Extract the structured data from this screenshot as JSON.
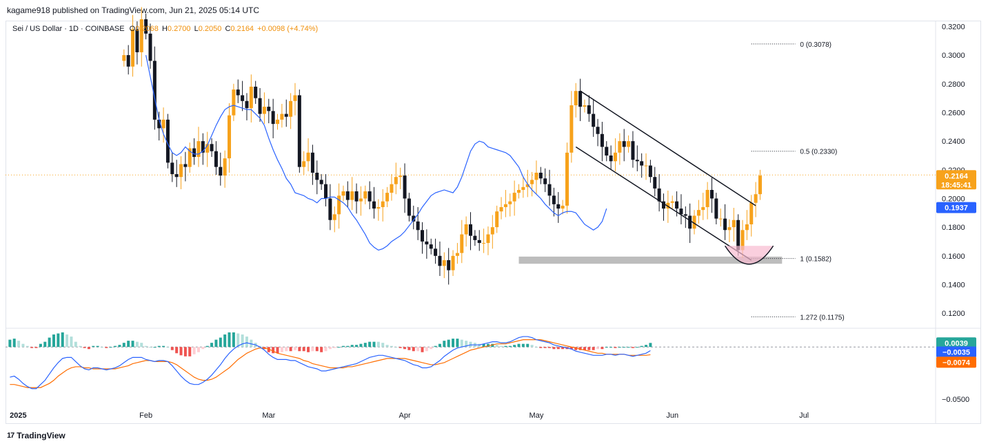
{
  "header": {
    "published": "kagame918 published on TradingView.com, Jun 21, 2025 05:14 UTC"
  },
  "legend": {
    "symbol": "Sei / US Dollar · 1D · COINBASE",
    "o_label": "O",
    "o_value": "0.2068",
    "h_label": "H",
    "h_value": "0.2700",
    "l_label": "L",
    "l_value": "0.2050",
    "c_label": "C",
    "c_value": "0.2164",
    "change": "+0.0098 (+4.74%)"
  },
  "badges": {
    "price": "0.2164",
    "countdown": "18:45:41",
    "ma": "0.1937",
    "macd_hist": "0.0039",
    "macd": "−0.0035",
    "signal": "−0.0074"
  },
  "fib": [
    {
      "label": "0 (0.3078)",
      "value": 0.3078
    },
    {
      "label": "0.5 (0.2330)",
      "value": 0.233
    },
    {
      "label": "1 (0.1582)",
      "value": 0.1582
    },
    {
      "label": "1.272 (0.1175)",
      "value": 0.1175
    }
  ],
  "brand": {
    "name": "TradingView"
  },
  "colors": {
    "up": "#f7a21b",
    "down": "#131722",
    "ma": "#2962ff",
    "macd": "#2962ff",
    "signal": "#ff6d00",
    "hist_up_strong": "#26a69a",
    "hist_up_weak": "#b2dfdb",
    "hist_down_strong": "#ef5350",
    "hist_down_weak": "#ffcdd2",
    "price_badge": "#f7a21b",
    "ma_badge": "#2962ff",
    "channel": "#131722",
    "support_zone": "#bdbdbd",
    "cup": "#f8bbd0"
  },
  "chart_data": [
    {
      "type": "candlestick",
      "ylim": [
        0.11,
        0.325
      ],
      "yticks": [
        "0.3200",
        "0.3000",
        "0.2800",
        "0.2600",
        "0.2400",
        "0.2200",
        "0.2000",
        "0.1800",
        "0.1600",
        "0.1400",
        "0.1200"
      ],
      "xticks": [
        {
          "label": "2025",
          "date": "2025-01-01"
        },
        {
          "label": "Feb",
          "date": "2025-02-01"
        },
        {
          "label": "Mar",
          "date": "2025-03-01"
        },
        {
          "label": "Apr",
          "date": "2025-04-01"
        },
        {
          "label": "May",
          "date": "2025-05-01"
        },
        {
          "label": "Jun",
          "date": "2025-06-01"
        },
        {
          "label": "Jul",
          "date": "2025-07-01"
        }
      ],
      "x_start": "2024-12-31",
      "x_end": "2025-07-31",
      "series": [
        {
          "name": "Sei / US Dollar",
          "kind": "ohlc",
          "start_date": "2025-01-27",
          "close": [
            0.3,
            0.292,
            0.318,
            0.302,
            0.325,
            0.315,
            0.296,
            0.255,
            0.249,
            0.255,
            0.225,
            0.217,
            0.215,
            0.224,
            0.222,
            0.235,
            0.229,
            0.24,
            0.232,
            0.238,
            0.233,
            0.222,
            0.216,
            0.228,
            0.258,
            0.276,
            0.272,
            0.268,
            0.263,
            0.278,
            0.27,
            0.259,
            0.264,
            0.261,
            0.252,
            0.255,
            0.259,
            0.257,
            0.268,
            0.272,
            0.222,
            0.226,
            0.232,
            0.218,
            0.213,
            0.21,
            0.2,
            0.185,
            0.189,
            0.202,
            0.205,
            0.199,
            0.205,
            0.198,
            0.2,
            0.205,
            0.198,
            0.193,
            0.194,
            0.198,
            0.204,
            0.21,
            0.215,
            0.216,
            0.2,
            0.188,
            0.184,
            0.178,
            0.17,
            0.168,
            0.165,
            0.16,
            0.153,
            0.157,
            0.15,
            0.16,
            0.162,
            0.175,
            0.182,
            0.174,
            0.171,
            0.169,
            0.169,
            0.175,
            0.18,
            0.191,
            0.194,
            0.196,
            0.198,
            0.204,
            0.206,
            0.208,
            0.21,
            0.213,
            0.218,
            0.214,
            0.21,
            0.202,
            0.196,
            0.193,
            0.195,
            0.232,
            0.265,
            0.275,
            0.264,
            0.265,
            0.259,
            0.25,
            0.245,
            0.236,
            0.23,
            0.226,
            0.232,
            0.24,
            0.236,
            0.24,
            0.227,
            0.226,
            0.223,
            0.223,
            0.215,
            0.207,
            0.198,
            0.193,
            0.197,
            0.198,
            0.193,
            0.189,
            0.188,
            0.179,
            0.188,
            0.192,
            0.194,
            0.206,
            0.2,
            0.186,
            0.186,
            0.178,
            0.18,
            0.185,
            0.164,
            0.178,
            0.182,
            0.197,
            0.203,
            0.216
          ]
        },
        {
          "name": "MA",
          "kind": "line",
          "start_date": "2025-02-01",
          "values": [
            0.3,
            0.285,
            0.27,
            0.255,
            0.245,
            0.238,
            0.232,
            0.23,
            0.232,
            0.236,
            0.233,
            0.231,
            0.231,
            0.233,
            0.237,
            0.244,
            0.251,
            0.257,
            0.262,
            0.264,
            0.265,
            0.264,
            0.263,
            0.262,
            0.262,
            0.259,
            0.256,
            0.251,
            0.242,
            0.234,
            0.227,
            0.221,
            0.214,
            0.21,
            0.204,
            0.203,
            0.202,
            0.2,
            0.199,
            0.197,
            0.2,
            0.2,
            0.201,
            0.201,
            0.199,
            0.197,
            0.194,
            0.189,
            0.185,
            0.18,
            0.175,
            0.169,
            0.166,
            0.164,
            0.165,
            0.167,
            0.17,
            0.172,
            0.174,
            0.177,
            0.181,
            0.185,
            0.189,
            0.194,
            0.198,
            0.202,
            0.204,
            0.205,
            0.206,
            0.205,
            0.204,
            0.208,
            0.215,
            0.224,
            0.233,
            0.238,
            0.24,
            0.239,
            0.236,
            0.235,
            0.234,
            0.233,
            0.232,
            0.23,
            0.226,
            0.222,
            0.215,
            0.21,
            0.206,
            0.203,
            0.2,
            0.196,
            0.193,
            0.19,
            0.188,
            0.19,
            0.191,
            0.191,
            0.19,
            0.186,
            0.182,
            0.18,
            0.178,
            0.18,
            0.184,
            0.193
          ]
        }
      ]
    },
    {
      "type": "line",
      "ylim": [
        -0.06,
        0.016
      ],
      "yticks": [
        "−0.0500"
      ],
      "x_start": "2024-12-31",
      "x_end": "2025-07-31",
      "series": [
        {
          "name": "MACD",
          "start_date": "2025-01-01",
          "values": [
            -0.029,
            -0.028,
            -0.031,
            -0.035,
            -0.038,
            -0.04,
            -0.04,
            -0.036,
            -0.032,
            -0.026,
            -0.02,
            -0.015,
            -0.011,
            -0.01,
            -0.01,
            -0.014,
            -0.018,
            -0.021,
            -0.022,
            -0.02,
            -0.02,
            -0.021,
            -0.022,
            -0.021,
            -0.02,
            -0.018,
            -0.015,
            -0.012,
            -0.01,
            -0.01,
            -0.01,
            -0.012,
            -0.013,
            -0.014,
            -0.013,
            -0.013,
            -0.014,
            -0.018,
            -0.023,
            -0.028,
            -0.032,
            -0.035,
            -0.036,
            -0.036,
            -0.034,
            -0.031,
            -0.027,
            -0.022,
            -0.017,
            -0.011,
            -0.006,
            -0.002,
            0.001,
            0.003,
            0.004,
            0.003,
            0.002,
            0.0,
            -0.003,
            -0.007,
            -0.01,
            -0.012,
            -0.012,
            -0.012,
            -0.013,
            -0.013,
            -0.015,
            -0.017,
            -0.019,
            -0.02,
            -0.021,
            -0.023,
            -0.023,
            -0.022,
            -0.021,
            -0.02,
            -0.019,
            -0.018,
            -0.017,
            -0.016,
            -0.014,
            -0.012,
            -0.01,
            -0.009,
            -0.008,
            -0.008,
            -0.009,
            -0.01,
            -0.011,
            -0.012,
            -0.013,
            -0.015,
            -0.017,
            -0.018,
            -0.02,
            -0.02,
            -0.019,
            -0.016,
            -0.013,
            -0.009,
            -0.006,
            -0.003,
            -0.001,
            0.0,
            0.001,
            0.002,
            0.002,
            0.002,
            0.003,
            0.004,
            0.005,
            0.005,
            0.004,
            0.004,
            0.005,
            0.007,
            0.009,
            0.01,
            0.01,
            0.009,
            0.007,
            0.006,
            0.005,
            0.004,
            0.002,
            0.001,
            0.0,
            -0.001,
            -0.002,
            -0.004,
            -0.005,
            -0.006,
            -0.007,
            -0.008,
            -0.008,
            -0.008,
            -0.007,
            -0.007,
            -0.008,
            -0.007,
            -0.007,
            -0.008,
            -0.009,
            -0.008,
            -0.007,
            -0.006,
            -0.0035
          ]
        },
        {
          "name": "Signal",
          "start_date": "2025-01-01",
          "values": [
            -0.036,
            -0.036,
            -0.037,
            -0.038,
            -0.039,
            -0.039,
            -0.039,
            -0.039,
            -0.037,
            -0.035,
            -0.032,
            -0.028,
            -0.025,
            -0.022,
            -0.02,
            -0.019,
            -0.019,
            -0.02,
            -0.02,
            -0.021,
            -0.021,
            -0.021,
            -0.021,
            -0.021,
            -0.021,
            -0.02,
            -0.019,
            -0.018,
            -0.016,
            -0.015,
            -0.014,
            -0.013,
            -0.013,
            -0.014,
            -0.014,
            -0.014,
            -0.014,
            -0.015,
            -0.017,
            -0.02,
            -0.023,
            -0.026,
            -0.029,
            -0.031,
            -0.032,
            -0.032,
            -0.031,
            -0.029,
            -0.026,
            -0.023,
            -0.02,
            -0.016,
            -0.012,
            -0.009,
            -0.006,
            -0.004,
            -0.002,
            -0.001,
            -0.001,
            -0.002,
            -0.004,
            -0.006,
            -0.007,
            -0.008,
            -0.009,
            -0.01,
            -0.011,
            -0.013,
            -0.014,
            -0.016,
            -0.017,
            -0.018,
            -0.019,
            -0.02,
            -0.02,
            -0.02,
            -0.02,
            -0.019,
            -0.019,
            -0.018,
            -0.017,
            -0.016,
            -0.015,
            -0.014,
            -0.013,
            -0.012,
            -0.011,
            -0.011,
            -0.011,
            -0.011,
            -0.011,
            -0.012,
            -0.013,
            -0.014,
            -0.015,
            -0.016,
            -0.017,
            -0.017,
            -0.016,
            -0.015,
            -0.013,
            -0.011,
            -0.009,
            -0.007,
            -0.005,
            -0.003,
            -0.002,
            -0.001,
            0.0,
            0.001,
            0.002,
            0.003,
            0.003,
            0.003,
            0.004,
            0.005,
            0.006,
            0.007,
            0.007,
            0.007,
            0.007,
            0.007,
            0.006,
            0.005,
            0.004,
            0.003,
            0.002,
            0.001,
            0.0,
            -0.001,
            -0.002,
            -0.003,
            -0.004,
            -0.005,
            -0.006,
            -0.006,
            -0.007,
            -0.007,
            -0.007,
            -0.007,
            -0.007,
            -0.008,
            -0.008,
            -0.008,
            -0.008,
            -0.008,
            -0.0074
          ]
        }
      ]
    }
  ]
}
